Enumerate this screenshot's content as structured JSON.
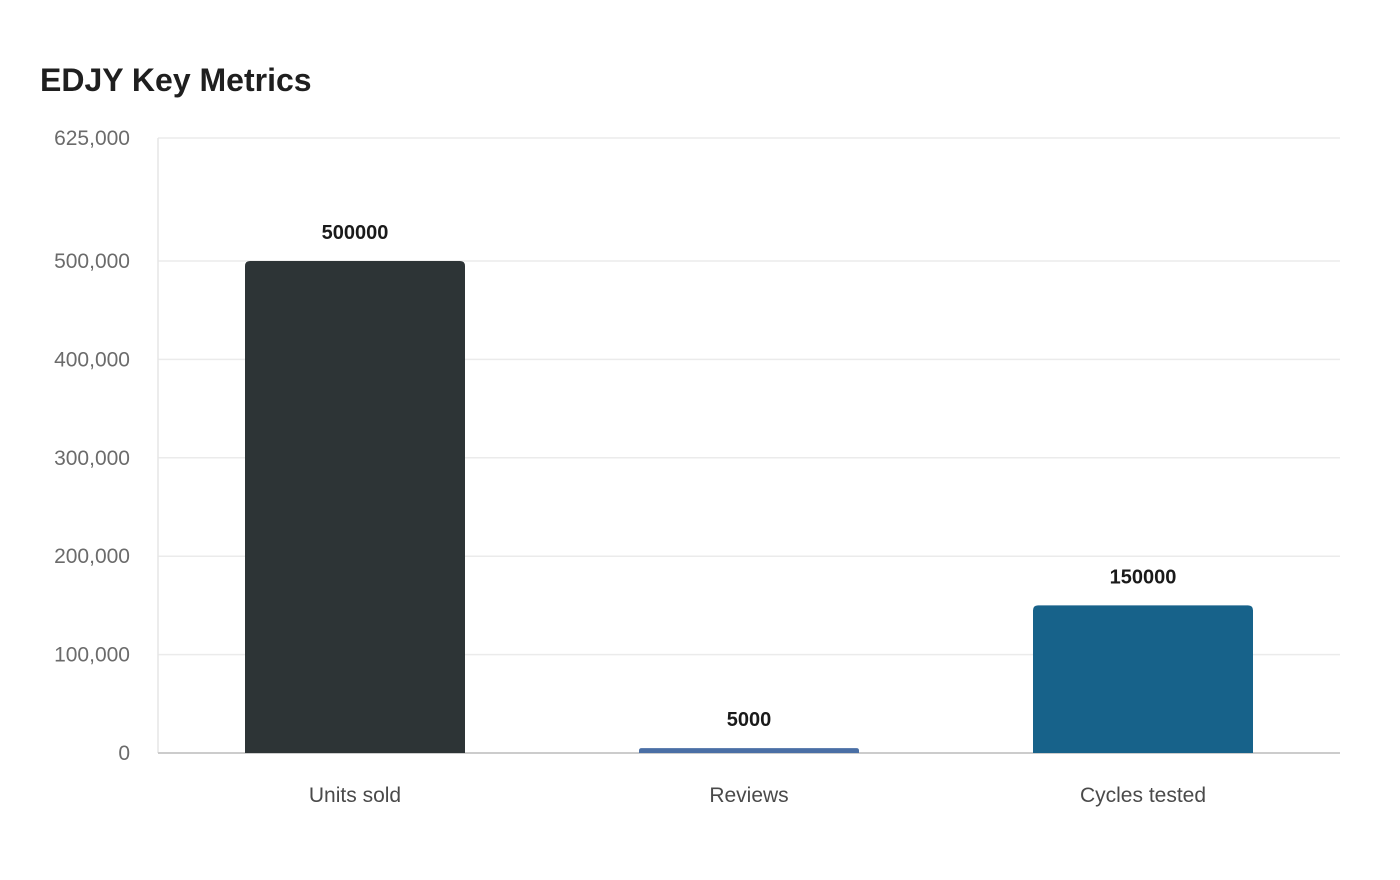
{
  "chart_data": {
    "type": "bar",
    "title": "EDJY Key Metrics",
    "xlabel": "",
    "ylabel": "",
    "categories": [
      "Units sold",
      "Reviews",
      "Cycles tested"
    ],
    "values": [
      500000,
      5000,
      150000
    ],
    "value_labels": [
      "500000",
      "5000",
      "150000"
    ],
    "bar_colors": [
      "#2d3436",
      "#4a6fa5",
      "#17628a"
    ],
    "ylim": [
      0,
      625000
    ],
    "yticks": [
      0,
      100000,
      200000,
      300000,
      400000,
      500000,
      625000
    ],
    "ytick_labels": [
      "0",
      "100,000",
      "200,000",
      "300,000",
      "400,000",
      "500,000",
      "625,000"
    ],
    "grid": true,
    "legend": "none"
  }
}
